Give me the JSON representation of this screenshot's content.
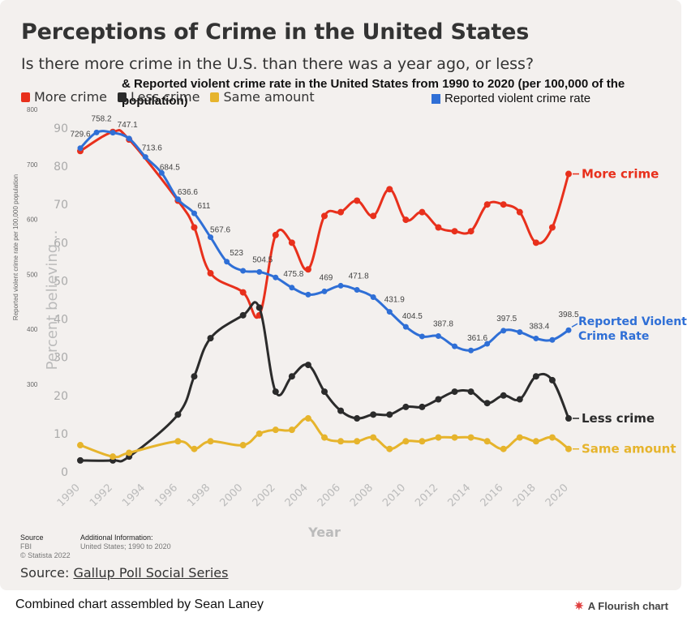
{
  "header": {
    "title": "Perceptions of Crime in the United States",
    "subtitle": "Is there more crime in the U.S. than there was a year ago, or less?",
    "secondary_title": "& Reported violent crime rate in the United States from 1990 to 2020 (per 100,000 of the population)"
  },
  "legend": {
    "items": [
      {
        "label": "More crime",
        "color": "#e8301c"
      },
      {
        "label": "Less crime",
        "color": "#2b2b2b"
      },
      {
        "label": "Same amount",
        "color": "#e6b42c"
      }
    ],
    "secondary": {
      "label": "Reported violent crime rate",
      "color": "#2f6fd6"
    }
  },
  "chart_data": [
    {
      "type": "line",
      "title": "Perceptions of Crime in the United States",
      "subtitle": "Is there more crime in the U.S. than there was a year ago, or less?",
      "xlabel": "Year",
      "ylabel": "Percent believing...",
      "ylim": [
        0,
        90
      ],
      "yticks": [
        0,
        10,
        20,
        30,
        40,
        50,
        60,
        70,
        80,
        90
      ],
      "xticks": [
        1990,
        1992,
        1994,
        1996,
        1998,
        2000,
        2002,
        2004,
        2006,
        2008,
        2010,
        2012,
        2014,
        2016,
        2018,
        2020
      ],
      "grid": false,
      "series": [
        {
          "name": "More crime",
          "color": "#e8301c",
          "end_label": "More crime",
          "points": [
            [
              1990,
              84
            ],
            [
              1992,
              89
            ],
            [
              1993,
              87
            ],
            [
              1996,
              71
            ],
            [
              1997,
              64
            ],
            [
              1998,
              52
            ],
            [
              2000,
              47
            ],
            [
              2001,
              41
            ],
            [
              2002,
              62
            ],
            [
              2003,
              60
            ],
            [
              2004,
              53
            ],
            [
              2005,
              67
            ],
            [
              2006,
              68
            ],
            [
              2007,
              71
            ],
            [
              2008,
              67
            ],
            [
              2009,
              74
            ],
            [
              2010,
              66
            ],
            [
              2011,
              68
            ],
            [
              2012,
              64
            ],
            [
              2013,
              63
            ],
            [
              2014,
              63
            ],
            [
              2015,
              70
            ],
            [
              2016,
              70
            ],
            [
              2017,
              68
            ],
            [
              2018,
              60
            ],
            [
              2019,
              64
            ],
            [
              2020,
              78
            ]
          ]
        },
        {
          "name": "Less crime",
          "color": "#2b2b2b",
          "end_label": "Less crime",
          "points": [
            [
              1990,
              3
            ],
            [
              1992,
              3
            ],
            [
              1993,
              4
            ],
            [
              1996,
              15
            ],
            [
              1997,
              25
            ],
            [
              1998,
              35
            ],
            [
              2000,
              41
            ],
            [
              2001,
              43
            ],
            [
              2002,
              21
            ],
            [
              2003,
              25
            ],
            [
              2004,
              28
            ],
            [
              2005,
              21
            ],
            [
              2006,
              16
            ],
            [
              2007,
              14
            ],
            [
              2008,
              15
            ],
            [
              2009,
              15
            ],
            [
              2010,
              17
            ],
            [
              2011,
              17
            ],
            [
              2012,
              19
            ],
            [
              2013,
              21
            ],
            [
              2014,
              21
            ],
            [
              2015,
              18
            ],
            [
              2016,
              20
            ],
            [
              2017,
              19
            ],
            [
              2018,
              25
            ],
            [
              2019,
              24
            ],
            [
              2020,
              14
            ]
          ]
        },
        {
          "name": "Same amount",
          "color": "#e6b42c",
          "end_label": "Same amount",
          "points": [
            [
              1990,
              7
            ],
            [
              1992,
              4
            ],
            [
              1993,
              5
            ],
            [
              1996,
              8
            ],
            [
              1997,
              6
            ],
            [
              1998,
              8
            ],
            [
              2000,
              7
            ],
            [
              2001,
              10
            ],
            [
              2002,
              11
            ],
            [
              2003,
              11
            ],
            [
              2004,
              14
            ],
            [
              2005,
              9
            ],
            [
              2006,
              8
            ],
            [
              2007,
              8
            ],
            [
              2008,
              9
            ],
            [
              2009,
              6
            ],
            [
              2010,
              8
            ],
            [
              2011,
              8
            ],
            [
              2012,
              9
            ],
            [
              2013,
              9
            ],
            [
              2014,
              9
            ],
            [
              2015,
              8
            ],
            [
              2016,
              6
            ],
            [
              2017,
              9
            ],
            [
              2018,
              8
            ],
            [
              2019,
              9
            ],
            [
              2020,
              6
            ]
          ]
        }
      ]
    },
    {
      "type": "line",
      "title": "& Reported violent crime rate in the United States from 1990 to 2020 (per 100,000 of the population)",
      "ylabel": "Reported violent crime rate per 100,000 population",
      "ylim": [
        200,
        800
      ],
      "yticks": [
        300,
        400,
        500,
        600,
        700,
        800
      ],
      "series": [
        {
          "name": "Reported violent crime rate",
          "color": "#2f6fd6",
          "end_label": "Reported Violent Crime Rate",
          "values": [
            729.6,
            758.2,
            757.7,
            747.1,
            713.6,
            684.5,
            636.6,
            611,
            567.6,
            523,
            506.5,
            504.5,
            494.4,
            475.8,
            463.2,
            469,
            479.3,
            471.8,
            458.6,
            431.9,
            404.5,
            387.1,
            387.8,
            369.1,
            361.6,
            373.7,
            397.5,
            394.9,
            383.4,
            380.8,
            398.5
          ],
          "labels_shown": {
            "1990": "729.6",
            "1991": "758.2",
            "1993": "747.1",
            "1994": "713.6",
            "1995": "684.5",
            "1996": "636.6",
            "1997": "611",
            "1998": "567.6",
            "1999": "523",
            "2001": "504.5",
            "2003": "475.8",
            "2005": "469",
            "2007": "471.8",
            "2009": "431.9",
            "2010": "404.5",
            "2012": "387.8",
            "2014": "361.6",
            "2016": "397.5",
            "2018": "383.4",
            "2020": "398.5"
          }
        }
      ]
    }
  ],
  "footer": {
    "source_label": "Source",
    "source_line1": "FBI",
    "source_line2": "© Statista 2022",
    "additional_label": "Additional Information:",
    "additional_value": "United States; 1990 to 2020",
    "gallup_prefix": "Source: ",
    "gallup_link": "Gallup Poll Social Series",
    "combined": "Combined chart assembled by Sean Laney",
    "flourish": "A Flourish chart"
  }
}
